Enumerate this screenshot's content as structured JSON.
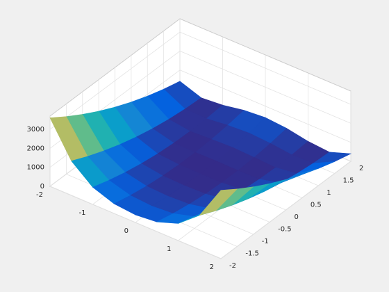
{
  "chart_data": {
    "type": "surface",
    "x": [
      -2,
      -1.5,
      -1,
      -0.5,
      0,
      0.5,
      1,
      1.5,
      2
    ],
    "y": [
      -2,
      -1.5,
      -1,
      -0.5,
      0,
      0.5,
      1,
      1.5,
      2
    ],
    "z": [
      [
        3609,
        1812.5,
        904,
        508.5,
        401,
        506.5,
        900,
        1806.5,
        3601
      ],
      [
        3034,
        1412.5,
        629,
        308.5,
        226,
        306.5,
        625,
        1406.5,
        3026
      ],
      [
        2509,
        1062.5,
        404,
        158.5,
        101,
        156.5,
        400,
        1056.5,
        2501
      ],
      [
        2034,
        762.5,
        229,
        58.5,
        26,
        56.5,
        225,
        756.5,
        2026
      ],
      [
        1609,
        512.5,
        104,
        8.5,
        1,
        6.5,
        100,
        506.5,
        1601
      ],
      [
        1234,
        312.5,
        29,
        8.5,
        26,
        6.5,
        25,
        306.5,
        1226
      ],
      [
        909,
        162.5,
        4,
        58.5,
        101,
        56.5,
        0,
        156.5,
        901
      ],
      [
        634,
        62.5,
        29,
        158.5,
        226,
        156.5,
        25,
        56.5,
        626
      ],
      [
        409,
        12.5,
        104,
        308.5,
        401,
        306.5,
        100,
        6.5,
        401
      ]
    ],
    "xlim": [
      -2,
      2
    ],
    "ylim": [
      -2,
      2
    ],
    "zlim": [
      0,
      3700
    ],
    "xticks": [
      -2,
      -1,
      0,
      1,
      2
    ],
    "yticks": [
      -2,
      -1.5,
      -1,
      -0.5,
      0,
      0.5,
      1,
      1.5,
      2
    ],
    "zticks": [
      0,
      1000,
      2000,
      3000
    ],
    "grid": true,
    "colormap": [
      "#352a87",
      "#0363e1",
      "#1485d4",
      "#06a7c6",
      "#38b99e",
      "#92bf73",
      "#d9ba56",
      "#fcce2e",
      "#f9fb0e"
    ]
  }
}
